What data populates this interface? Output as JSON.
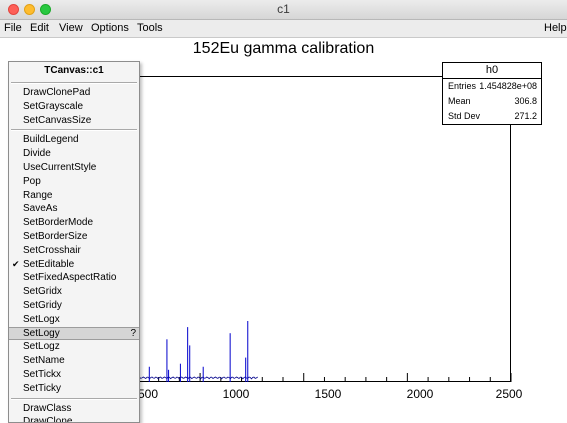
{
  "window": {
    "title": "c1"
  },
  "menubar": {
    "file": "File",
    "edit": "Edit",
    "view": "View",
    "options": "Options",
    "tools": "Tools",
    "help": "Help"
  },
  "canvas": {
    "title": "152Eu gamma calibration"
  },
  "stats": {
    "name": "h0",
    "rows": [
      {
        "key": "Entries",
        "value": "1.454828e+08"
      },
      {
        "key": "Mean",
        "value": "306.8"
      },
      {
        "key": "Std Dev",
        "value": "271.2"
      }
    ]
  },
  "axis": {
    "x_tick_labels": [
      "500",
      "1000",
      "1500",
      "2000",
      "2500"
    ],
    "xlim": [
      300,
      2500
    ]
  },
  "context_menu": {
    "title": "TCanvas::c1",
    "group1": [
      "DrawClonePad",
      "SetGrayscale",
      "SetCanvasSize"
    ],
    "group2": [
      "BuildLegend",
      "Divide",
      "UseCurrentStyle",
      "Pop",
      "Range",
      "SaveAs",
      "SetBorderMode",
      "SetBorderSize",
      "SetCrosshair",
      "SetEditable",
      "SetFixedAspectRatio",
      "SetGridx",
      "SetGridy",
      "SetLogx",
      "SetLogy",
      "SetLogz",
      "SetName",
      "SetTickx",
      "SetTicky"
    ],
    "group3": [
      "DrawClass",
      "DrawClone"
    ],
    "checked_item": "SetEditable",
    "highlighted_item": "SetLogy",
    "help_glyph": "?",
    "check_glyph": "✔"
  },
  "colors": {
    "histogram_line": "#00008b",
    "peak_line": "#0000cc"
  },
  "chart_data": {
    "type": "line",
    "title": "152Eu gamma calibration",
    "xlim": [
      300,
      2500
    ],
    "peaks": [
      {
        "x": 650,
        "height": 0.12
      },
      {
        "x": 695,
        "height": 0.16
      },
      {
        "x": 755,
        "height": 0.05
      },
      {
        "x": 840,
        "height": 0.14
      },
      {
        "x": 848,
        "height": 0.04
      },
      {
        "x": 905,
        "height": 0.06
      },
      {
        "x": 940,
        "height": 0.18
      },
      {
        "x": 950,
        "height": 0.12
      },
      {
        "x": 1015,
        "height": 0.05
      },
      {
        "x": 1145,
        "height": 0.16
      },
      {
        "x": 1220,
        "height": 0.08
      },
      {
        "x": 1230,
        "height": 0.2
      }
    ]
  }
}
